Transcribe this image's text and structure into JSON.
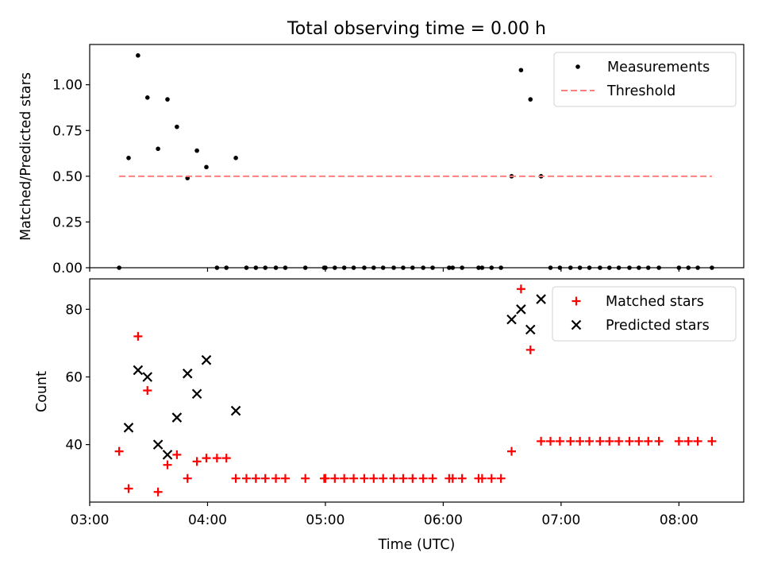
{
  "title": "Total observing time = 0.00 h",
  "colors": {
    "axis": "#000000",
    "measurement": "#000000",
    "threshold": "#ff7f7f",
    "matched": "#ff0000",
    "predicted": "#000000"
  },
  "chart_data": [
    {
      "type": "scatter",
      "title": "Total observing time = 0.00 h",
      "xlabel": "",
      "ylabel": "Matched/Predicted stars",
      "xlim": [
        3.0,
        8.55
      ],
      "ylim": [
        0.0,
        1.22
      ],
      "yticks": [
        0.0,
        0.25,
        0.5,
        0.75,
        1.0
      ],
      "ytick_labels": [
        "0.00",
        "0.25",
        "0.50",
        "0.75",
        "1.00"
      ],
      "legend_position": "top-right",
      "grid": false,
      "series": [
        {
          "name": "Measurements",
          "marker": "dot",
          "x": [
            3.25,
            3.33,
            3.41,
            3.49,
            3.58,
            3.66,
            3.74,
            3.83,
            3.91,
            3.99,
            4.08,
            4.16,
            4.24,
            4.33,
            4.41,
            4.49,
            4.58,
            4.66,
            4.83,
            4.99,
            5.0,
            5.08,
            5.16,
            5.24,
            5.33,
            5.41,
            5.49,
            5.58,
            5.66,
            5.74,
            5.83,
            5.91,
            6.05,
            6.08,
            6.16,
            6.3,
            6.33,
            6.41,
            6.49,
            6.58,
            6.66,
            6.74,
            6.83,
            6.91,
            6.99,
            7.08,
            7.16,
            7.24,
            7.33,
            7.41,
            7.49,
            7.58,
            7.66,
            7.74,
            7.83,
            8.0,
            8.08,
            8.16,
            8.28
          ],
          "y": [
            0.0,
            0.6,
            1.16,
            0.93,
            0.65,
            0.92,
            0.77,
            0.49,
            0.64,
            0.55,
            0.0,
            0.0,
            0.6,
            0.0,
            0.0,
            0.0,
            0.0,
            0.0,
            0.0,
            0.0,
            0.0,
            0.0,
            0.0,
            0.0,
            0.0,
            0.0,
            0.0,
            0.0,
            0.0,
            0.0,
            0.0,
            0.0,
            0.0,
            0.0,
            0.0,
            0.0,
            0.0,
            0.0,
            0.0,
            0.5,
            1.08,
            0.92,
            0.5,
            0.0,
            0.0,
            0.0,
            0.0,
            0.0,
            0.0,
            0.0,
            0.0,
            0.0,
            0.0,
            0.0,
            0.0,
            0.0,
            0.0,
            0.0,
            0.0
          ]
        },
        {
          "name": "Threshold",
          "marker": "dashed-line",
          "x": [
            3.25,
            8.28
          ],
          "y": [
            0.5,
            0.5
          ]
        }
      ]
    },
    {
      "type": "scatter",
      "xlabel": "Time (UTC)",
      "ylabel": "Count",
      "xlim": [
        3.0,
        8.55
      ],
      "ylim": [
        23.0,
        89.0
      ],
      "yticks": [
        40,
        60,
        80
      ],
      "ytick_labels": [
        "40",
        "60",
        "80"
      ],
      "xticks": [
        3.0,
        4.0,
        5.0,
        6.0,
        7.0,
        8.0
      ],
      "xtick_labels": [
        "03:00",
        "04:00",
        "05:00",
        "06:00",
        "07:00",
        "08:00"
      ],
      "legend_position": "top-right",
      "grid": false,
      "series": [
        {
          "name": "Matched stars",
          "marker": "plus",
          "x": [
            3.25,
            3.33,
            3.41,
            3.49,
            3.58,
            3.66,
            3.74,
            3.83,
            3.91,
            3.99,
            4.08,
            4.16,
            4.24,
            4.33,
            4.41,
            4.49,
            4.58,
            4.66,
            4.83,
            4.99,
            5.0,
            5.08,
            5.16,
            5.24,
            5.33,
            5.41,
            5.49,
            5.58,
            5.66,
            5.74,
            5.83,
            5.91,
            6.05,
            6.08,
            6.16,
            6.3,
            6.33,
            6.41,
            6.49,
            6.58,
            6.66,
            6.74,
            6.83,
            6.91,
            6.99,
            7.08,
            7.16,
            7.24,
            7.33,
            7.41,
            7.49,
            7.58,
            7.66,
            7.74,
            7.83,
            8.0,
            8.08,
            8.16,
            8.28
          ],
          "y": [
            38,
            27,
            72,
            56,
            26,
            34,
            37,
            30,
            35,
            36,
            36,
            36,
            30,
            30,
            30,
            30,
            30,
            30,
            30,
            30,
            30,
            30,
            30,
            30,
            30,
            30,
            30,
            30,
            30,
            30,
            30,
            30,
            30,
            30,
            30,
            30,
            30,
            30,
            30,
            38,
            86,
            68,
            41,
            41,
            41,
            41,
            41,
            41,
            41,
            41,
            41,
            41,
            41,
            41,
            41,
            41,
            41,
            41,
            41
          ]
        },
        {
          "name": "Predicted stars",
          "marker": "x",
          "x": [
            3.33,
            3.41,
            3.49,
            3.58,
            3.66,
            3.74,
            3.83,
            3.91,
            3.99,
            4.24,
            6.58,
            6.66,
            6.74,
            6.83
          ],
          "y": [
            45,
            62,
            60,
            40,
            37,
            48,
            61,
            55,
            65,
            50,
            77,
            80,
            74,
            83
          ]
        }
      ]
    }
  ]
}
